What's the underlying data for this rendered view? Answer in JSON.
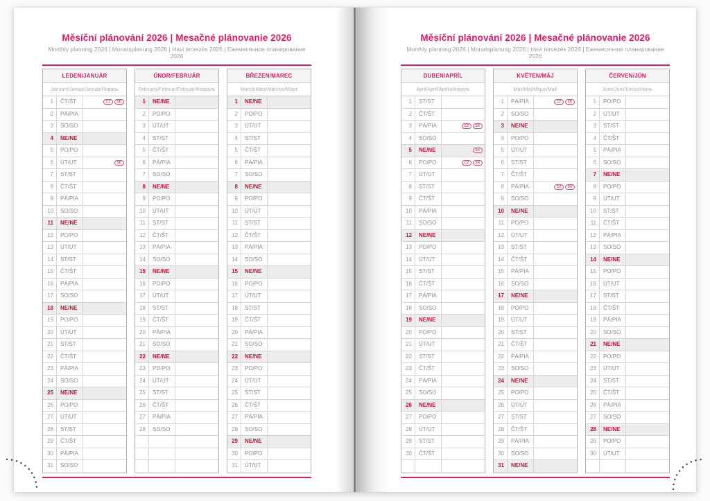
{
  "meta": {
    "sunday_label": "NE/NE",
    "total_rows_per_month": 31
  },
  "colors": {
    "accent_pink": "#e21a63",
    "holiday_red": "#c81338",
    "sunday_row_bg": "#ededed",
    "badge_pink": "#d94f74"
  },
  "badge_legend": [
    "CZ",
    "SK"
  ],
  "pages": [
    {
      "title": "Měsíční plánování 2026 | Mesačné plánovanie 2026",
      "subtitle": "Monthly planning 2026 | Monatsplanung 2026 | Havi tervezés 2026 | Ежемесячное планирование 2026",
      "months": [
        {
          "name": "LEDEN/JANUÁR",
          "languages": "January/Januar/Január/Январь",
          "days": [
            "ČT/ŠT",
            "PÁ/PIA",
            "SO/SO",
            "NE/NE",
            "PO/PO",
            "ÚT/UT",
            "ST/ST",
            "ČT/ŠT",
            "PÁ/PIA",
            "SO/SO",
            "NE/NE",
            "PO/PO",
            "ÚT/UT",
            "ST/ST",
            "ČT/ŠT",
            "PÁ/PIA",
            "SO/SO",
            "NE/NE",
            "PO/PO",
            "ÚT/UT",
            "ST/ST",
            "ČT/ŠT",
            "PÁ/PIA",
            "SO/SO",
            "NE/NE",
            "PO/PO",
            "ÚT/UT",
            "ST/ST",
            "ČT/ŠT",
            "PÁ/PIA",
            "SO/SO"
          ],
          "holiday_badges": {
            "1": [
              "CZ",
              "SK"
            ],
            "6": [
              "SK"
            ]
          }
        },
        {
          "name": "ÚNOR/FEBRUÁR",
          "languages": "February/Februar/Február/Февраль",
          "days": [
            "NE/NE",
            "PO/PO",
            "ÚT/UT",
            "ST/ST",
            "ČT/ŠT",
            "PÁ/PIA",
            "SO/SO",
            "NE/NE",
            "PO/PO",
            "ÚT/UT",
            "ST/ST",
            "ČT/ŠT",
            "PÁ/PIA",
            "SO/SO",
            "NE/NE",
            "PO/PO",
            "ÚT/UT",
            "ST/ST",
            "ČT/ŠT",
            "PÁ/PIA",
            "SO/SO",
            "NE/NE",
            "PO/PO",
            "ÚT/UT",
            "ST/ST",
            "ČT/ŠT",
            "PÁ/PIA",
            "SO/SO"
          ],
          "holiday_badges": {}
        },
        {
          "name": "BŘEZEN/MAREC",
          "languages": "March/März/Március/Март",
          "days": [
            "NE/NE",
            "PO/PO",
            "ÚT/UT",
            "ST/ST",
            "ČT/ŠT",
            "PÁ/PIA",
            "SO/SO",
            "NE/NE",
            "PO/PO",
            "ÚT/UT",
            "ST/ST",
            "ČT/ŠT",
            "PÁ/PIA",
            "SO/SO",
            "NE/NE",
            "PO/PO",
            "ÚT/UT",
            "ST/ST",
            "ČT/ŠT",
            "PÁ/PIA",
            "SO/SO",
            "NE/NE",
            "PO/PO",
            "ÚT/UT",
            "ST/ST",
            "ČT/ŠT",
            "PÁ/PIA",
            "SO/SO",
            "NE/NE",
            "PO/PO",
            "ÚT/UT"
          ],
          "holiday_badges": {}
        }
      ]
    },
    {
      "title": "Měsíční plánování 2026 | Mesačné plánovanie 2026",
      "subtitle": "Monthly planning 2026 | Monatsplanung 2026 | Havi tervezés 2026 | Ежемесячное планирование 2026",
      "months": [
        {
          "name": "DUBEN/APRÍL",
          "languages": "April/Apríl/Április/Апрель",
          "days": [
            "ST/ST",
            "ČT/ŠT",
            "PÁ/PIA",
            "SO/SO",
            "NE/NE",
            "PO/PO",
            "ÚT/UT",
            "ST/ST",
            "ČT/ŠT",
            "PÁ/PIA",
            "SO/SO",
            "NE/NE",
            "PO/PO",
            "ÚT/UT",
            "ST/ST",
            "ČT/ŠT",
            "PÁ/PIA",
            "SO/SO",
            "NE/NE",
            "PO/PO",
            "ÚT/UT",
            "ST/ST",
            "ČT/ŠT",
            "PÁ/PIA",
            "SO/SO",
            "NE/NE",
            "PO/PO",
            "ÚT/UT",
            "ST/ST",
            "ČT/ŠT"
          ],
          "holiday_badges": {
            "3": [
              "CZ",
              "SK"
            ],
            "5": [
              "SK"
            ],
            "6": [
              "CZ",
              "SK"
            ]
          }
        },
        {
          "name": "KVĚTEN/MÁJ",
          "languages": "May/Mai/Május/Май",
          "days": [
            "PÁ/PIA",
            "SO/SO",
            "NE/NE",
            "PO/PO",
            "ÚT/UT",
            "ST/ST",
            "ČT/ŠT",
            "PÁ/PIA",
            "SO/SO",
            "NE/NE",
            "PO/PO",
            "ÚT/UT",
            "ST/ST",
            "ČT/ŠT",
            "PÁ/PIA",
            "SO/SO",
            "NE/NE",
            "PO/PO",
            "ÚT/UT",
            "ST/ST",
            "ČT/ŠT",
            "PÁ/PIA",
            "SO/SO",
            "NE/NE",
            "PO/PO",
            "ÚT/UT",
            "ST/ST",
            "ČT/ŠT",
            "PÁ/PIA",
            "SO/SO",
            "NE/NE"
          ],
          "holiday_badges": {
            "1": [
              "CZ",
              "SK"
            ],
            "8": [
              "CZ",
              "SK"
            ]
          }
        },
        {
          "name": "ČERVEN/JÚN",
          "languages": "June/Juni/Június/Июнь",
          "days": [
            "PO/PO",
            "ÚT/UT",
            "ST/ST",
            "ČT/ŠT",
            "PÁ/PIA",
            "SO/SO",
            "NE/NE",
            "PO/PO",
            "ÚT/UT",
            "ST/ST",
            "ČT/ŠT",
            "PÁ/PIA",
            "SO/SO",
            "NE/NE",
            "PO/PO",
            "ÚT/UT",
            "ST/ST",
            "ČT/ŠT",
            "PÁ/PIA",
            "SO/SO",
            "NE/NE",
            "PO/PO",
            "ÚT/UT",
            "ST/ST",
            "ČT/ŠT",
            "PÁ/PIA",
            "SO/SO",
            "NE/NE",
            "PO/PO",
            "ÚT/UT"
          ],
          "holiday_badges": {}
        }
      ]
    }
  ]
}
